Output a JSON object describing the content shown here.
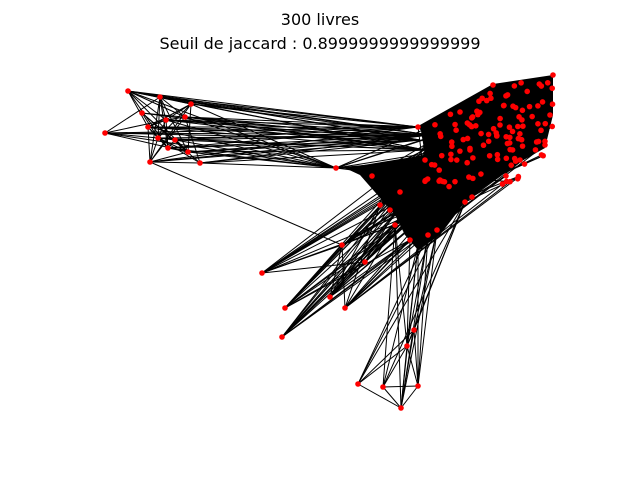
{
  "figure": {
    "title_line1": "300 livres",
    "title_line2": "Seuil de jaccard : 0.8999999999999999"
  },
  "graph": {
    "node_color": "#ff0000",
    "edge_color": "#000000",
    "background": "#ffffff"
  }
}
